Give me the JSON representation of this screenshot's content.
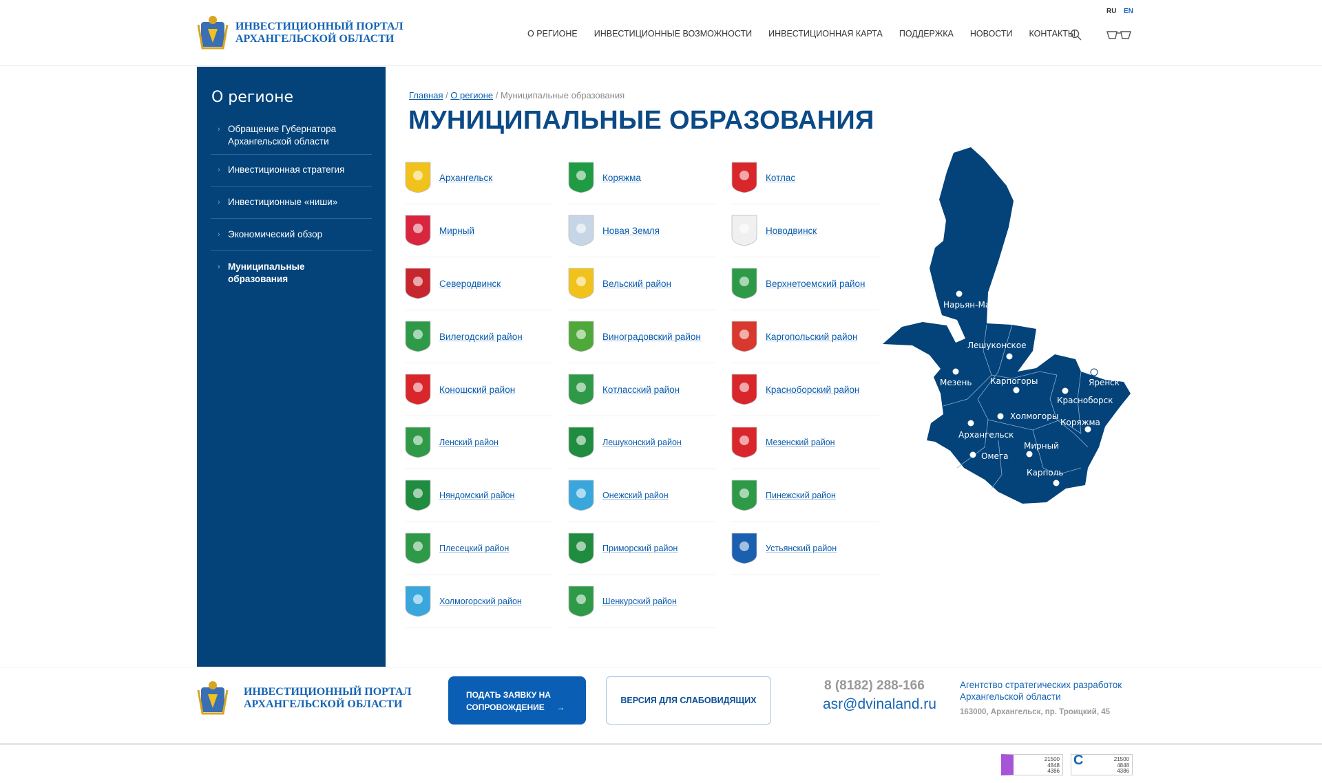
{
  "header": {
    "logo_line1": "ИНВЕСТИЦИОННЫЙ ПОРТАЛ",
    "logo_line2": "АРХАНГЕЛЬСКОЙ ОБЛАСТИ",
    "nav": [
      "О РЕГИОНЕ",
      "ИНВЕСТИЦИОННЫЕ ВОЗМОЖНОСТИ",
      "ИНВЕСТИЦИОННАЯ КАРТА",
      "ПОДДЕРЖКА",
      "НОВОСТИ",
      "КОНТАКТЫ"
    ],
    "lang": [
      "RU",
      "EN"
    ],
    "search_icon": "search-icon",
    "accessibility_icon": "glasses-icon"
  },
  "sidebar": {
    "title": "О регионе",
    "items": [
      {
        "label": "Обращение Губернатора Архангельской области"
      },
      {
        "label": "Инвестиционная стратегия"
      },
      {
        "label": "Инвестиционные «ниши»"
      },
      {
        "label": "Экономический обзор"
      },
      {
        "label": "Муниципальные образования",
        "active": true
      }
    ]
  },
  "breadcrumb": {
    "home": "Главная",
    "parent": "О регионе",
    "current": "Муниципальные образования"
  },
  "page_title": "МУНИЦИПАЛЬНЫЕ ОБРАЗОВАНИЯ",
  "municipalities": [
    {
      "name": "Архангельск",
      "color": "#f2c21c"
    },
    {
      "name": "Коряжма",
      "color": "#1f9b43"
    },
    {
      "name": "Котлас",
      "color": "#d9262b"
    },
    {
      "name": "Мирный",
      "color": "#d8263f"
    },
    {
      "name": "Новая Земля",
      "color": "#c7d6e6"
    },
    {
      "name": "Новодвинск",
      "color": "#f0f0f0"
    },
    {
      "name": "Северодвинск",
      "color": "#c8262f"
    },
    {
      "name": "Вельский район",
      "color": "#f2c21c"
    },
    {
      "name": "Верхнетоемский район",
      "color": "#2e9a48"
    },
    {
      "name": "Вилегодский район",
      "color": "#2e9a48"
    },
    {
      "name": "Виноградовский район",
      "color": "#4ea83a"
    },
    {
      "name": "Каргопольский район",
      "color": "#d9382e"
    },
    {
      "name": "Коношский район",
      "color": "#d9262b"
    },
    {
      "name": "Котласский район",
      "color": "#2e9a48"
    },
    {
      "name": "Красноборский район",
      "color": "#d9262b"
    },
    {
      "name": "Ленский район",
      "color": "#2e9a48"
    },
    {
      "name": "Лешуконский район",
      "color": "#1f8c3f"
    },
    {
      "name": "Мезенский район",
      "color": "#d9262b"
    },
    {
      "name": "Няндомский район",
      "color": "#1f8c3f"
    },
    {
      "name": "Онежский район",
      "color": "#3aa7dc"
    },
    {
      "name": "Пинежский район ",
      "color": "#2e9a48"
    },
    {
      "name": "Плесецкий район",
      "color": "#2e9a48"
    },
    {
      "name": "Приморский район",
      "color": "#1f8c3f"
    },
    {
      "name": "Устьянский район ",
      "color": "#1b5fb0"
    },
    {
      "name": "Холмогорский район",
      "color": "#3aa7dc"
    },
    {
      "name": "Шенкурский район",
      "color": "#2e9a48"
    }
  ],
  "map": {
    "color": "#03437a",
    "cities": [
      "Нарьян-Мар",
      "Лешуконское",
      "Мезень",
      "Карпогоры",
      "Яренск",
      "Красноборск",
      "Холмогоры",
      "Коряжма",
      "Архангельск",
      "Мирный",
      "Омега",
      "Карполь"
    ]
  },
  "footer": {
    "logo_line1": "ИНВЕСТИЦИОННЫЙ ПОРТАЛ",
    "logo_line2": "АРХАНГЕЛЬСКОЙ ОБЛАСТИ",
    "apply_line1": "ПОДАТЬ ЗАЯВКУ НА",
    "apply_line2": "СОПРОВОЖДЕНИЕ",
    "accessible_version": "ВЕРСИЯ ДЛЯ СЛАБОВИДЯЩИХ",
    "phone": "8 (8182) 288-166",
    "email": "asr@dvinaland.ru",
    "agency_line1": "Агентство стратегических разработок",
    "agency_line2": "Архангельской области",
    "address": "163000, Архангельск, пр. Троицкий, 45"
  },
  "counters": [
    {
      "values": [
        "21500",
        "4848",
        "4386"
      ]
    },
    {
      "values": [
        "21500",
        "4848",
        "4386"
      ]
    }
  ]
}
